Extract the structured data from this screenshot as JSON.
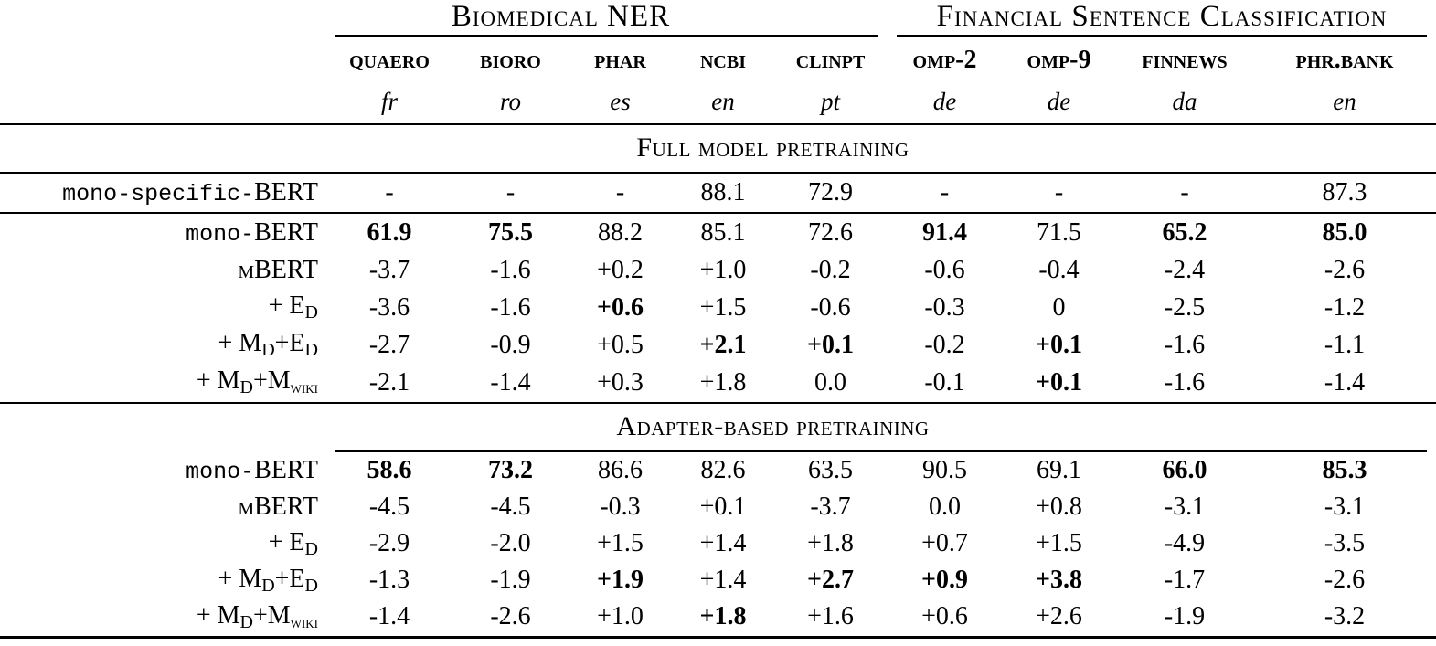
{
  "group_headers": [
    {
      "label": "Biomedical NER",
      "span": 5
    },
    {
      "label": "Financial Sentence Classification",
      "span": 4
    }
  ],
  "columns": [
    {
      "name": "quaero",
      "lang": "fr"
    },
    {
      "name": "bioro",
      "lang": "ro"
    },
    {
      "name": "phar",
      "lang": "es"
    },
    {
      "name": "ncbi",
      "lang": "en"
    },
    {
      "name": "clinpt",
      "lang": "pt"
    },
    {
      "name": "omp-2",
      "lang": "de"
    },
    {
      "name": "omp-9",
      "lang": "de"
    },
    {
      "name": "finnews",
      "lang": "da"
    },
    {
      "name": "phr.bank",
      "lang": "en"
    }
  ],
  "sections": [
    {
      "title": "Full model pretraining",
      "blocks": [
        {
          "rows": [
            {
              "label": [
                {
                  "t": "mono-specific-",
                  "s": "tt"
                },
                {
                  "t": "BERT",
                  "s": "rm"
                }
              ],
              "cells": [
                {
                  "v": "-"
                },
                {
                  "v": "-"
                },
                {
                  "v": "-"
                },
                {
                  "v": "88.1"
                },
                {
                  "v": "72.9"
                },
                {
                  "v": "-"
                },
                {
                  "v": "-"
                },
                {
                  "v": "-"
                },
                {
                  "v": "87.3"
                }
              ]
            }
          ]
        },
        {
          "rows": [
            {
              "label": [
                {
                  "t": "mono-",
                  "s": "tt"
                },
                {
                  "t": "BERT",
                  "s": "rm"
                }
              ],
              "cells": [
                {
                  "v": "61.9",
                  "b": true
                },
                {
                  "v": "75.5",
                  "b": true
                },
                {
                  "v": "88.2"
                },
                {
                  "v": "85.1"
                },
                {
                  "v": "72.6"
                },
                {
                  "v": "91.4",
                  "b": true
                },
                {
                  "v": "71.5"
                },
                {
                  "v": "65.2",
                  "b": true
                },
                {
                  "v": "85.0",
                  "b": true
                }
              ]
            },
            {
              "label": [
                {
                  "t": "m",
                  "s": "sc"
                },
                {
                  "t": "BERT",
                  "s": "rm"
                }
              ],
              "cells": [
                {
                  "v": "-3.7"
                },
                {
                  "v": "-1.6"
                },
                {
                  "v": "+0.2"
                },
                {
                  "v": "+1.0"
                },
                {
                  "v": "-0.2"
                },
                {
                  "v": "-0.6"
                },
                {
                  "v": "-0.4"
                },
                {
                  "v": "-2.4"
                },
                {
                  "v": "-2.6"
                }
              ]
            },
            {
              "label": [
                {
                  "t": "+ E",
                  "s": "rm"
                },
                {
                  "t": "D",
                  "s": "sub"
                }
              ],
              "cells": [
                {
                  "v": "-3.6"
                },
                {
                  "v": "-1.6"
                },
                {
                  "v": "+0.6",
                  "b": true
                },
                {
                  "v": "+1.5"
                },
                {
                  "v": "-0.6"
                },
                {
                  "v": "-0.3"
                },
                {
                  "v": "0"
                },
                {
                  "v": "-2.5"
                },
                {
                  "v": "-1.2"
                }
              ]
            },
            {
              "label": [
                {
                  "t": "+ M",
                  "s": "rm"
                },
                {
                  "t": "D",
                  "s": "sub"
                },
                {
                  "t": "+E",
                  "s": "rm"
                },
                {
                  "t": "D",
                  "s": "sub"
                }
              ],
              "cells": [
                {
                  "v": "-2.7"
                },
                {
                  "v": "-0.9"
                },
                {
                  "v": "+0.5"
                },
                {
                  "v": "+2.1",
                  "b": true
                },
                {
                  "v": "+0.1",
                  "b": true
                },
                {
                  "v": "-0.2"
                },
                {
                  "v": "+0.1",
                  "b": true
                },
                {
                  "v": "-1.6"
                },
                {
                  "v": "-1.1"
                }
              ]
            },
            {
              "label": [
                {
                  "t": "+ M",
                  "s": "rm"
                },
                {
                  "t": "D",
                  "s": "sub"
                },
                {
                  "t": "+M",
                  "s": "rm"
                },
                {
                  "t": "wiki",
                  "s": "subsc"
                }
              ],
              "cells": [
                {
                  "v": "-2.1"
                },
                {
                  "v": "-1.4"
                },
                {
                  "v": "+0.3"
                },
                {
                  "v": "+1.8"
                },
                {
                  "v": "0.0"
                },
                {
                  "v": "-0.1"
                },
                {
                  "v": "+0.1",
                  "b": true
                },
                {
                  "v": "-1.6"
                },
                {
                  "v": "-1.4"
                }
              ]
            }
          ]
        }
      ]
    },
    {
      "title": "Adapter-based pretraining",
      "blocks": [
        {
          "rows": [
            {
              "label": [
                {
                  "t": "mono-",
                  "s": "tt"
                },
                {
                  "t": "BERT",
                  "s": "rm"
                }
              ],
              "cells": [
                {
                  "v": "58.6",
                  "b": true
                },
                {
                  "v": "73.2",
                  "b": true
                },
                {
                  "v": "86.6"
                },
                {
                  "v": "82.6"
                },
                {
                  "v": "63.5"
                },
                {
                  "v": "90.5"
                },
                {
                  "v": "69.1"
                },
                {
                  "v": "66.0",
                  "b": true
                },
                {
                  "v": "85.3",
                  "b": true
                }
              ]
            },
            {
              "label": [
                {
                  "t": "m",
                  "s": "sc"
                },
                {
                  "t": "BERT",
                  "s": "rm"
                }
              ],
              "cells": [
                {
                  "v": "-4.5"
                },
                {
                  "v": "-4.5"
                },
                {
                  "v": "-0.3"
                },
                {
                  "v": "+0.1"
                },
                {
                  "v": "-3.7"
                },
                {
                  "v": "0.0"
                },
                {
                  "v": "+0.8"
                },
                {
                  "v": "-3.1"
                },
                {
                  "v": "-3.1"
                }
              ]
            },
            {
              "label": [
                {
                  "t": "+ E",
                  "s": "rm"
                },
                {
                  "t": "D",
                  "s": "sub"
                }
              ],
              "cells": [
                {
                  "v": "-2.9"
                },
                {
                  "v": "-2.0"
                },
                {
                  "v": "+1.5"
                },
                {
                  "v": "+1.4"
                },
                {
                  "v": "+1.8"
                },
                {
                  "v": "+0.7"
                },
                {
                  "v": "+1.5"
                },
                {
                  "v": "-4.9"
                },
                {
                  "v": "-3.5"
                }
              ]
            },
            {
              "label": [
                {
                  "t": "+ M",
                  "s": "rm"
                },
                {
                  "t": "D",
                  "s": "sub"
                },
                {
                  "t": "+E",
                  "s": "rm"
                },
                {
                  "t": "D",
                  "s": "sub"
                }
              ],
              "cells": [
                {
                  "v": "-1.3"
                },
                {
                  "v": "-1.9"
                },
                {
                  "v": "+1.9",
                  "b": true
                },
                {
                  "v": "+1.4"
                },
                {
                  "v": "+2.7",
                  "b": true
                },
                {
                  "v": "+0.9",
                  "b": true
                },
                {
                  "v": "+3.8",
                  "b": true
                },
                {
                  "v": "-1.7"
                },
                {
                  "v": "-2.6"
                }
              ]
            },
            {
              "label": [
                {
                  "t": "+ M",
                  "s": "rm"
                },
                {
                  "t": "D",
                  "s": "sub"
                },
                {
                  "t": "+M",
                  "s": "rm"
                },
                {
                  "t": "wiki",
                  "s": "subsc"
                }
              ],
              "cells": [
                {
                  "v": "-1.4"
                },
                {
                  "v": "-2.6"
                },
                {
                  "v": "+1.0"
                },
                {
                  "v": "+1.8",
                  "b": true
                },
                {
                  "v": "+1.6"
                },
                {
                  "v": "+0.6"
                },
                {
                  "v": "+2.6"
                },
                {
                  "v": "-1.9"
                },
                {
                  "v": "-3.2"
                }
              ]
            }
          ]
        }
      ]
    }
  ]
}
